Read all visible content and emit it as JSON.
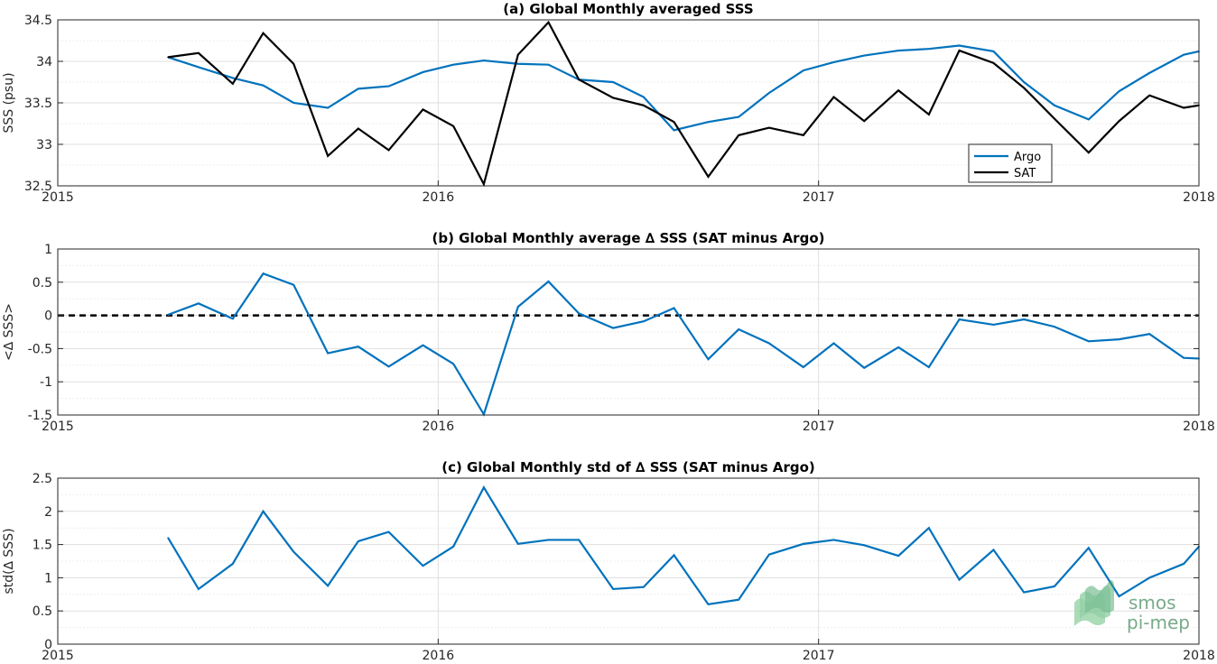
{
  "colors": {
    "argo": "#0072BD",
    "sat": "#000000",
    "zero_line": "#000000"
  },
  "logo": {
    "line1": "smos",
    "line2": "pi-mep"
  },
  "chart_data": [
    {
      "type": "line",
      "title": "(a) Global Monthly averaged SSS",
      "xlabel": "",
      "ylabel": "SSS (psu)",
      "xlim": [
        2015,
        2018
      ],
      "ylim": [
        32.5,
        34.5
      ],
      "xticks": [
        2015,
        2016,
        2017,
        2018
      ],
      "yticks": [
        32.5,
        33,
        33.5,
        34,
        34.5
      ],
      "yminor": [
        32.75,
        33.25,
        33.75,
        34.25
      ],
      "legend": {
        "position": "lower-right",
        "entries": [
          "Argo",
          "SAT"
        ]
      },
      "grid": true,
      "x": [
        2015.29,
        2015.37,
        2015.46,
        2015.54,
        2015.62,
        2015.71,
        2015.79,
        2015.87,
        2015.96,
        2016.04,
        2016.12,
        2016.21,
        2016.29,
        2016.37,
        2016.46,
        2016.54,
        2016.62,
        2016.71,
        2016.79,
        2016.87,
        2016.96,
        2017.04,
        2017.12,
        2017.21,
        2017.29,
        2017.37,
        2017.46,
        2017.54,
        2017.62,
        2017.71,
        2017.79,
        2017.87,
        2017.96,
        2018.0
      ],
      "series": [
        {
          "name": "Argo",
          "values": [
            34.05,
            33.93,
            33.8,
            33.71,
            33.5,
            33.44,
            33.67,
            33.7,
            33.87,
            33.96,
            34.01,
            33.97,
            33.96,
            33.78,
            33.75,
            33.57,
            33.17,
            33.27,
            33.33,
            33.62,
            33.89,
            33.99,
            34.07,
            34.13,
            34.15,
            34.19,
            34.12,
            33.75,
            33.47,
            33.3,
            33.64,
            33.86,
            34.08,
            34.12
          ]
        },
        {
          "name": "SAT",
          "values": [
            34.05,
            34.1,
            33.73,
            34.34,
            33.97,
            32.86,
            33.19,
            32.93,
            33.42,
            33.22,
            32.52,
            34.08,
            34.47,
            33.78,
            33.56,
            33.47,
            33.27,
            32.61,
            33.11,
            33.2,
            33.11,
            33.57,
            33.28,
            33.65,
            33.36,
            34.13,
            33.98,
            33.68,
            33.31,
            32.9,
            33.28,
            33.59,
            33.44,
            33.47
          ]
        }
      ]
    },
    {
      "type": "line",
      "title": "(b) Global Monthly average ∆ SSS (SAT minus Argo)",
      "xlabel": "",
      "ylabel": "<∆ SSS>",
      "xlim": [
        2015,
        2018
      ],
      "ylim": [
        -1.5,
        1
      ],
      "xticks": [
        2015,
        2016,
        2017,
        2018
      ],
      "yticks": [
        -1.5,
        -1,
        -0.5,
        0,
        0.5,
        1
      ],
      "yminor": [
        -1.25,
        -0.75,
        -0.25,
        0.25,
        0.75
      ],
      "reference_line": 0,
      "grid": true,
      "x": [
        2015.29,
        2015.37,
        2015.46,
        2015.54,
        2015.62,
        2015.71,
        2015.79,
        2015.87,
        2015.96,
        2016.04,
        2016.12,
        2016.21,
        2016.29,
        2016.37,
        2016.46,
        2016.54,
        2016.62,
        2016.71,
        2016.79,
        2016.87,
        2016.96,
        2017.04,
        2017.12,
        2017.21,
        2017.29,
        2017.37,
        2017.46,
        2017.54,
        2017.62,
        2017.71,
        2017.79,
        2017.87,
        2017.96,
        2018.0
      ],
      "series": [
        {
          "name": "",
          "values": [
            0.01,
            0.18,
            -0.05,
            0.63,
            0.46,
            -0.57,
            -0.47,
            -0.77,
            -0.45,
            -0.73,
            -1.49,
            0.13,
            0.51,
            0.03,
            -0.19,
            -0.09,
            0.11,
            -0.66,
            -0.21,
            -0.42,
            -0.78,
            -0.42,
            -0.79,
            -0.48,
            -0.78,
            -0.06,
            -0.14,
            -0.06,
            -0.17,
            -0.39,
            -0.36,
            -0.28,
            -0.64,
            -0.65
          ]
        }
      ]
    },
    {
      "type": "line",
      "title": "(c) Global Monthly std of ∆ SSS (SAT minus Argo)",
      "xlabel": "",
      "ylabel": "std(∆ SSS)",
      "xlim": [
        2015,
        2018
      ],
      "ylim": [
        0,
        2.5
      ],
      "xticks": [
        2015,
        2016,
        2017,
        2018
      ],
      "yticks": [
        0,
        0.5,
        1,
        1.5,
        2,
        2.5
      ],
      "yminor": [
        0.25,
        0.75,
        1.25,
        1.75,
        2.25
      ],
      "grid": true,
      "x": [
        2015.29,
        2015.37,
        2015.46,
        2015.54,
        2015.62,
        2015.71,
        2015.79,
        2015.87,
        2015.96,
        2016.04,
        2016.12,
        2016.21,
        2016.29,
        2016.37,
        2016.46,
        2016.54,
        2016.62,
        2016.71,
        2016.79,
        2016.87,
        2016.96,
        2017.04,
        2017.12,
        2017.21,
        2017.29,
        2017.37,
        2017.46,
        2017.54,
        2017.62,
        2017.71,
        2017.79,
        2017.87,
        2017.96,
        2018.0
      ],
      "series": [
        {
          "name": "",
          "values": [
            1.6,
            0.83,
            1.21,
            2.0,
            1.39,
            0.88,
            1.55,
            1.69,
            1.18,
            1.47,
            2.36,
            1.51,
            1.57,
            1.57,
            0.83,
            0.86,
            1.34,
            0.6,
            0.67,
            1.35,
            1.51,
            1.57,
            1.49,
            1.33,
            1.75,
            0.97,
            1.42,
            0.78,
            0.87,
            1.45,
            0.72,
            1.0,
            1.21,
            1.47
          ]
        }
      ]
    }
  ]
}
